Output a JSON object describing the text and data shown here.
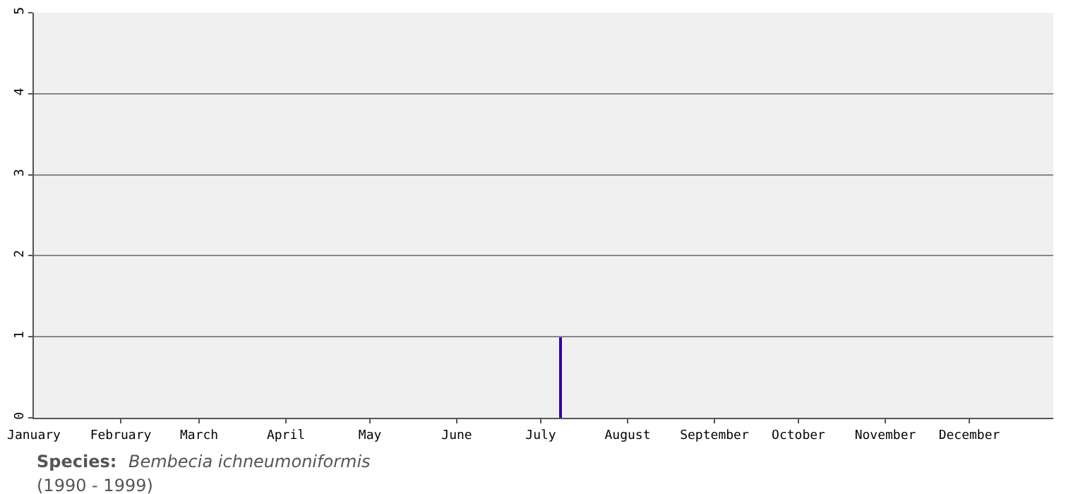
{
  "chart_data": {
    "type": "bar",
    "x": [
      "--07-08"
    ],
    "values": [
      1
    ],
    "color": "#3300aa",
    "xlim": [
      "--01-01",
      "--12-31"
    ],
    "xticks": [
      {
        "value": "--01-01",
        "label": "January"
      },
      {
        "value": "--02-01",
        "label": "February"
      },
      {
        "value": "--03-01",
        "label": "March"
      },
      {
        "value": "--04-01",
        "label": "April"
      },
      {
        "value": "--05-01",
        "label": "May"
      },
      {
        "value": "--06-01",
        "label": "June"
      },
      {
        "value": "--07-01",
        "label": "July"
      },
      {
        "value": "--08-01",
        "label": "August"
      },
      {
        "value": "--09-01",
        "label": "September"
      },
      {
        "value": "--10-01",
        "label": "October"
      },
      {
        "value": "--11-01",
        "label": "November"
      },
      {
        "value": "--12-01",
        "label": "December"
      }
    ],
    "ylim": [
      0,
      5
    ],
    "yticks": [
      0,
      1,
      2,
      3,
      4,
      5
    ],
    "grid": "y",
    "annotations": [
      "Species:",
      "Bembecia ichneumoniformis",
      "(1990 - 1999)"
    ]
  }
}
